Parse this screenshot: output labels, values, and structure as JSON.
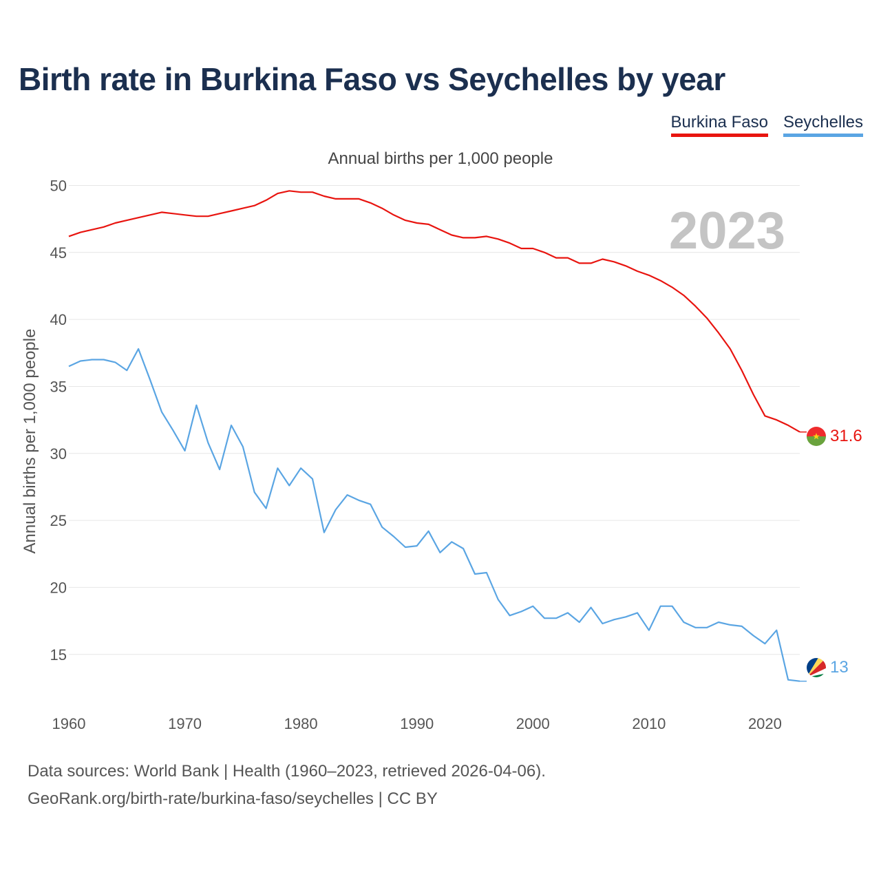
{
  "title": "Birth rate in Burkina Faso vs Seychelles by year",
  "subtitle": "Annual births per 1,000 people",
  "footer": {
    "sources": "Data sources: World Bank | Health (1960–2023, retrieved 2026-04-06).",
    "link": "GeoRank.org/birth-rate/burkina-faso/seychelles | CC BY"
  },
  "year_watermark": "2023",
  "colors": {
    "title": "#1b2f4f",
    "grid": "#e6e6e6",
    "burkina_faso": "#e8140f",
    "seychelles": "#5aa5e3"
  },
  "chart_data": {
    "type": "line",
    "title": "Birth rate in Burkina Faso vs Seychelles by year",
    "subtitle": "Annual births per 1,000 people",
    "xlabel": "",
    "ylabel": "Annual births per 1,000 people",
    "xlim": [
      1960,
      2023
    ],
    "ylim": [
      11.7,
      51
    ],
    "x_ticks": [
      1960,
      1970,
      1980,
      1990,
      2000,
      2010,
      2020
    ],
    "y_ticks": [
      15,
      20,
      25,
      30,
      35,
      40,
      45,
      50
    ],
    "grid": true,
    "legend_position": "top-right",
    "x": [
      1960,
      1961,
      1962,
      1963,
      1964,
      1965,
      1966,
      1967,
      1968,
      1969,
      1970,
      1971,
      1972,
      1973,
      1974,
      1975,
      1976,
      1977,
      1978,
      1979,
      1980,
      1981,
      1982,
      1983,
      1984,
      1985,
      1986,
      1987,
      1988,
      1989,
      1990,
      1991,
      1992,
      1993,
      1994,
      1995,
      1996,
      1997,
      1998,
      1999,
      2000,
      2001,
      2002,
      2003,
      2004,
      2005,
      2006,
      2007,
      2008,
      2009,
      2010,
      2011,
      2012,
      2013,
      2014,
      2015,
      2016,
      2017,
      2018,
      2019,
      2020,
      2021,
      2022,
      2023
    ],
    "series": [
      {
        "name": "Burkina Faso",
        "color": "#e8140f",
        "end_label": "31.6",
        "values": [
          46.2,
          46.5,
          46.7,
          46.9,
          47.2,
          47.4,
          47.6,
          47.8,
          48.0,
          47.9,
          47.8,
          47.7,
          47.7,
          47.9,
          48.1,
          48.3,
          48.5,
          48.9,
          49.4,
          49.6,
          49.5,
          49.5,
          49.2,
          49.0,
          49.0,
          49.0,
          48.7,
          48.3,
          47.8,
          47.4,
          47.2,
          47.1,
          46.7,
          46.3,
          46.1,
          46.1,
          46.2,
          46.0,
          45.7,
          45.3,
          45.3,
          45.0,
          44.6,
          44.6,
          44.2,
          44.2,
          44.5,
          44.3,
          44.0,
          43.6,
          43.3,
          42.9,
          42.4,
          41.8,
          41.0,
          40.1,
          39.0,
          37.8,
          36.2,
          34.4,
          32.8,
          32.5,
          32.1,
          31.6
        ]
      },
      {
        "name": "Seychelles",
        "color": "#5aa5e3",
        "end_label": "13",
        "values": [
          36.5,
          36.9,
          37.0,
          37.0,
          36.8,
          36.2,
          37.8,
          35.5,
          33.1,
          31.7,
          30.2,
          33.6,
          30.8,
          28.8,
          32.1,
          30.5,
          27.1,
          25.9,
          28.9,
          27.6,
          28.9,
          28.1,
          24.1,
          25.8,
          26.9,
          26.5,
          26.2,
          24.5,
          23.8,
          23.0,
          23.1,
          24.2,
          22.6,
          23.4,
          22.9,
          21.0,
          21.1,
          19.1,
          17.9,
          18.2,
          18.6,
          17.7,
          17.7,
          18.1,
          17.4,
          18.5,
          17.3,
          17.6,
          17.8,
          18.1,
          16.8,
          18.6,
          18.6,
          17.4,
          17.0,
          17.0,
          17.4,
          17.2,
          17.1,
          16.4,
          15.8,
          16.8,
          13.1,
          13.0
        ]
      }
    ]
  }
}
